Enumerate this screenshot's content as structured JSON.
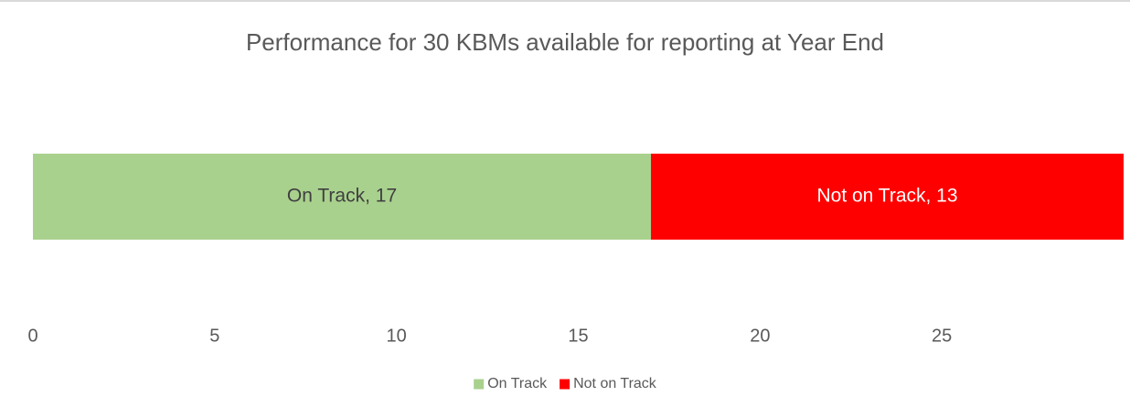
{
  "chart_data": {
    "type": "stacked_bar_horizontal",
    "title": "Performance for 30 KBMs available for reporting at Year End",
    "series": [
      {
        "name": "On Track",
        "color": "#a9d18e",
        "values": [
          17
        ],
        "value_labels": [
          "On Track, 17"
        ]
      },
      {
        "name": "Not on Track",
        "color": "#ff0000",
        "values": [
          13
        ],
        "value_labels": [
          "Not on Track, 13"
        ]
      }
    ],
    "xlim": [
      0,
      30
    ],
    "xticks": [
      0,
      5,
      10,
      15,
      20,
      25
    ],
    "legend": "bottom",
    "grid": false
  }
}
